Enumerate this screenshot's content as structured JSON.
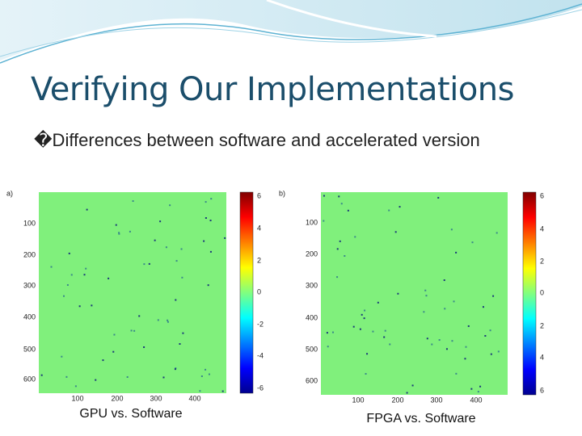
{
  "title": "Verifying Our Implementations",
  "bullet": "�Differences between software and accelerated version",
  "figures": [
    {
      "panel": "a)",
      "yticks": [
        "100",
        "200",
        "300",
        "400",
        "500",
        "600"
      ],
      "xticks": [
        "100",
        "200",
        "300",
        "400"
      ],
      "colorbar_ticks": [
        "6",
        "4",
        "2",
        "0",
        "-2",
        "-4",
        "-6"
      ],
      "caption": "GPU vs. Software"
    },
    {
      "panel": "b)",
      "yticks": [
        "100",
        "200",
        "300",
        "400",
        "500",
        "600"
      ],
      "xticks": [
        "100",
        "200",
        "300",
        "400"
      ],
      "colorbar_ticks": [
        "6",
        "4",
        "2",
        "0",
        "2",
        "4",
        "6"
      ],
      "caption": "FPGA vs. Software"
    }
  ]
}
